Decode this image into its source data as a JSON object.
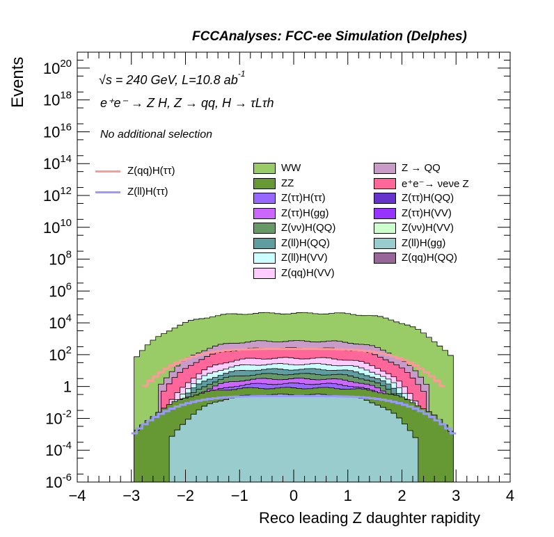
{
  "header": {
    "title": "FCCAnalyses: FCC-ee Simulation (Delphes)",
    "ylabel": "Events",
    "xlabel": "Reco leading Z daughter rapidity",
    "energy_label": "s = 240 GeV, L=10.8 ab",
    "energy_sup": "-1",
    "process_label": "e⁺e⁻ → Z H, Z → qq, H → τLτh",
    "selection_label": "No additional selection"
  },
  "chart_data": {
    "type": "histogram",
    "x_range": [
      -4,
      4
    ],
    "y_range": [
      1e-06,
      1e+21
    ],
    "y_scale": "log",
    "x_ticks": [
      "−4",
      "−3",
      "−2",
      "−1",
      "0",
      "1",
      "2",
      "3",
      "4"
    ],
    "y_ticks": [
      {
        "base": "10",
        "exp": "20"
      },
      {
        "base": "10",
        "exp": "18"
      },
      {
        "base": "10",
        "exp": "16"
      },
      {
        "base": "10",
        "exp": "14"
      },
      {
        "base": "10",
        "exp": "12"
      },
      {
        "base": "10",
        "exp": "10"
      },
      {
        "base": "10",
        "exp": "8"
      },
      {
        "base": "10",
        "exp": "6"
      },
      {
        "base": "10",
        "exp": "4"
      },
      {
        "base": "10",
        "exp": "2"
      },
      {
        "base": "1",
        "exp": ""
      },
      {
        "base": "10",
        "exp": "-2"
      },
      {
        "base": "10",
        "exp": "-4"
      },
      {
        "base": "10",
        "exp": "-6"
      }
    ],
    "stack_levels": [
      {
        "name": "WW",
        "color": "#99cc66",
        "x_half_width": 2.95,
        "peak": 40000
      },
      {
        "name": "Z → QQ",
        "color": "#c99bc9",
        "x_half_width": 2.5,
        "peak": 700
      },
      {
        "name": "e⁺e⁻ → νeνe Z",
        "color": "#ff6699",
        "x_half_width": 2.45,
        "peak": 250
      },
      {
        "name": "Z(qq)H(VV)",
        "color": "#ffccff",
        "x_half_width": 2.3,
        "peak": 60
      },
      {
        "name": "Z(ll)H(VV)",
        "color": "#ccffff",
        "x_half_width": 2.3,
        "peak": 25
      },
      {
        "name": "Z(ll)H(QQ)",
        "color": "#5f9ea0",
        "x_half_width": 2.3,
        "peak": 12
      },
      {
        "name": "Z(νν)H(QQ)",
        "color": "#669966",
        "x_half_width": 2.3,
        "peak": 6
      },
      {
        "name": "Z(ττ)H(gg)",
        "color": "#cc66ff",
        "x_half_width": 2.3,
        "peak": 3
      },
      {
        "name": "Z(ττ)H(ττ)",
        "color": "#9966ff",
        "x_half_width": 2.3,
        "peak": 1.5
      },
      {
        "name": "ZZ",
        "color": "#669933",
        "x_half_width": 2.95,
        "peak": 0.8
      },
      {
        "name": "Z(ll)H(gg)",
        "color": "#99cccc",
        "x_half_width": 2.3,
        "peak": 0.3
      }
    ],
    "curves": [
      {
        "name": "Z(qq)H(ττ)",
        "color": "#ff9999",
        "peak": 230,
        "half_width": 2.8
      },
      {
        "name": "Z(ll)H(ττ)",
        "color": "#9999ff",
        "peak": 0.25,
        "half_width": 3.0
      }
    ],
    "legend_left": [
      {
        "name": "Z(qq)H(ττ)",
        "color": "#ff9999"
      },
      {
        "name": "Z(ll)H(ττ)",
        "color": "#9999ff"
      }
    ],
    "legend_col1": [
      {
        "name": "WW",
        "color": "#99cc66"
      },
      {
        "name": "ZZ",
        "color": "#669933"
      },
      {
        "name": "Z(ττ)H(ττ)",
        "color": "#9966ff"
      },
      {
        "name": "Z(ττ)H(gg)",
        "color": "#cc66ff"
      },
      {
        "name": "Z(νν)H(QQ)",
        "color": "#669966"
      },
      {
        "name": "Z(ll)H(QQ)",
        "color": "#5f9ea0"
      },
      {
        "name": "Z(ll)H(VV)",
        "color": "#ccffff"
      },
      {
        "name": "Z(qq)H(VV)",
        "color": "#ffccff"
      }
    ],
    "legend_col2": [
      {
        "name": "Z → QQ",
        "color": "#c99bc9"
      },
      {
        "name": "e⁺e⁻→ νeνe Z",
        "color": "#ff6699"
      },
      {
        "name": "Z(ττ)H(QQ)",
        "color": "#6633cc"
      },
      {
        "name": "Z(ττ)H(VV)",
        "color": "#9933ff"
      },
      {
        "name": "Z(νν)H(VV)",
        "color": "#ccffcc"
      },
      {
        "name": "Z(ll)H(gg)",
        "color": "#99cccc"
      },
      {
        "name": "Z(qq)H(QQ)",
        "color": "#996699"
      }
    ]
  }
}
